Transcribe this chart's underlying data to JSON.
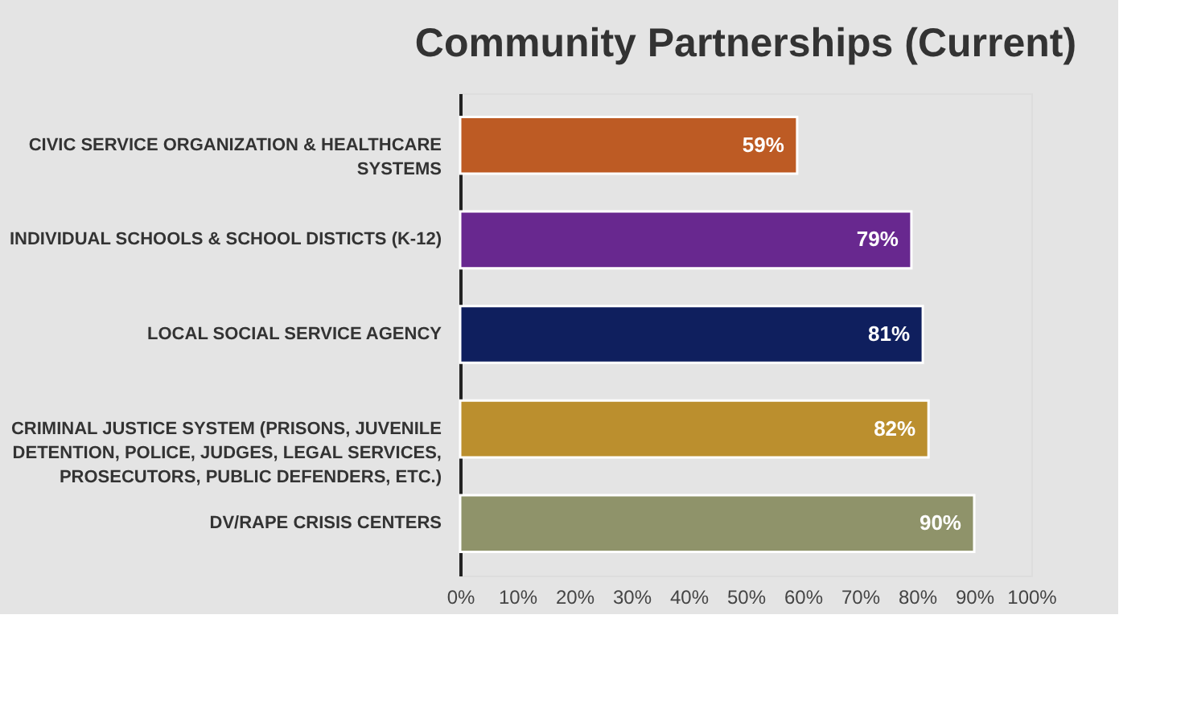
{
  "chart_data": {
    "type": "bar",
    "orientation": "horizontal",
    "title": "Community Partnerships (Current)",
    "categories": [
      "CIVIC SERVICE ORGANIZATION & HEALTHCARE SYSTEMS",
      "INDIVIDUAL SCHOOLS & SCHOOL DISTICTS (K-12)",
      "LOCAL SOCIAL SERVICE AGENCY",
      "CRIMINAL JUSTICE SYSTEM (PRISONS, JUVENILE DETENTION, POLICE, JUDGES, LEGAL SERVICES, PROSECUTORS, PUBLIC DEFENDERS, ETC.)",
      "DV/RAPE CRISIS CENTERS"
    ],
    "values": [
      59,
      79,
      81,
      82,
      90
    ],
    "colors": [
      "#bd5b24",
      "#68288f",
      "#0f1f5e",
      "#bb8f2e",
      "#8f936a"
    ],
    "value_labels": [
      "59%",
      "79%",
      "81%",
      "82%",
      "90%"
    ],
    "xlim": [
      0,
      100
    ],
    "xticks": [
      {
        "value": 0,
        "label": "0%"
      },
      {
        "value": 10,
        "label": "10%"
      },
      {
        "value": 20,
        "label": "20%"
      },
      {
        "value": 30,
        "label": "30%"
      },
      {
        "value": 40,
        "label": "40%"
      },
      {
        "value": 50,
        "label": "50%"
      },
      {
        "value": 60,
        "label": "60%"
      },
      {
        "value": 70,
        "label": "70%"
      },
      {
        "value": 80,
        "label": "80%"
      },
      {
        "value": 90,
        "label": "90%"
      },
      {
        "value": 100,
        "label": "100%"
      }
    ],
    "grid": false
  }
}
